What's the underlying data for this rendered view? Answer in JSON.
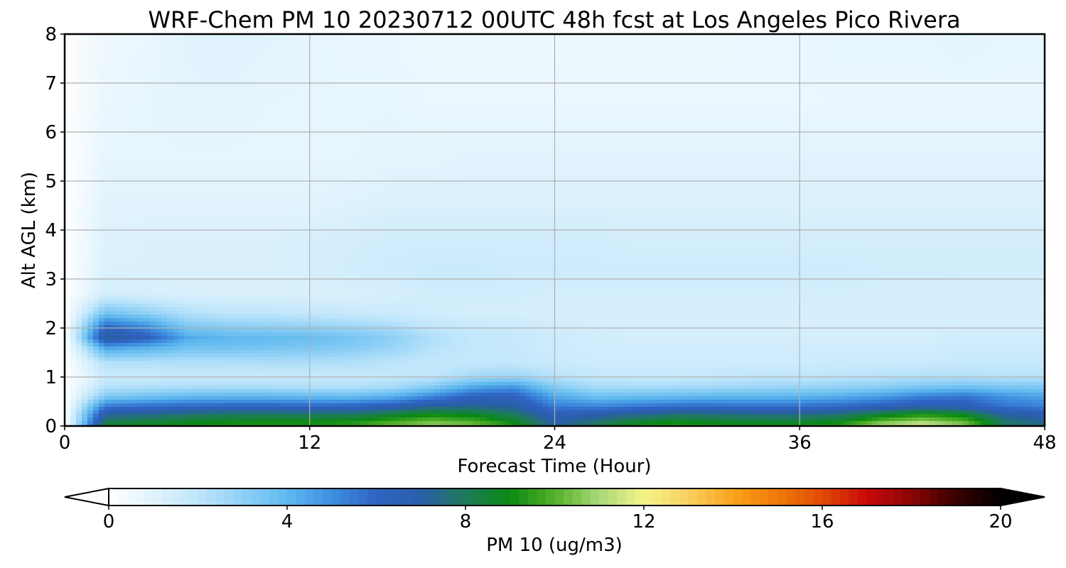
{
  "chart_data": {
    "type": "heatmap",
    "title": "WRF-Chem PM 10  20230712 00UTC 48h fcst at Los Angeles Pico Rivera",
    "xlabel": "Forecast Time (Hour)",
    "ylabel": "Alt AGL (km)",
    "xlim": [
      0,
      48
    ],
    "ylim": [
      0,
      8
    ],
    "xticks": [
      "0",
      "12",
      "24",
      "36",
      "48"
    ],
    "yticks": [
      "0",
      "1",
      "2",
      "3",
      "4",
      "5",
      "6",
      "7",
      "8"
    ],
    "grid": true,
    "colorbar": {
      "label": "PM 10  (ug/m3)",
      "range": [
        0,
        20
      ],
      "ticks": [
        "0",
        "4",
        "8",
        "12",
        "16",
        "20"
      ],
      "extend": "both",
      "colors": [
        "#ffffff",
        "#e1f3fd",
        "#c0e6fb",
        "#8fd0f6",
        "#5fb9ee",
        "#3e8fe0",
        "#2f63c3",
        "#2a5ea8",
        "#1e7a5a",
        "#0a8a12",
        "#55b02a",
        "#a8d878",
        "#f4f48a",
        "#f9d060",
        "#f8a21d",
        "#f07a08",
        "#e04a05",
        "#c80a0a",
        "#8a0505",
        "#3a0000",
        "#000000"
      ]
    },
    "x_hours": [
      0,
      2,
      4,
      6,
      8,
      10,
      12,
      14,
      16,
      18,
      20,
      22,
      24,
      26,
      28,
      30,
      32,
      34,
      36,
      38,
      40,
      42,
      44,
      46,
      48
    ],
    "z_km": [
      0,
      0.1,
      0.25,
      0.4,
      0.6,
      0.8,
      1.0,
      1.3,
      1.6,
      1.8,
      2.0,
      2.3,
      2.7,
      3.2,
      3.8,
      4.5,
      5.5,
      6.5,
      8.0
    ],
    "values": [
      [
        0.0,
        8.8,
        9.0,
        9.3,
        9.5,
        9.5,
        9.4,
        9.7,
        10.5,
        11.0,
        10.7,
        9.5,
        7.2,
        8.2,
        9.3,
        9.8,
        9.4,
        9.3,
        9.3,
        9.8,
        11.5,
        12.0,
        11.0,
        8.0,
        7.5
      ],
      [
        0.0,
        8.0,
        8.3,
        8.6,
        8.8,
        8.9,
        8.9,
        9.0,
        9.6,
        10.2,
        9.8,
        8.7,
        6.9,
        7.6,
        8.4,
        8.7,
        8.5,
        8.4,
        8.4,
        8.7,
        10.0,
        10.8,
        10.0,
        7.8,
        7.2
      ],
      [
        0.0,
        7.0,
        7.3,
        7.6,
        7.8,
        7.8,
        7.8,
        7.8,
        8.3,
        8.8,
        8.6,
        7.9,
        6.4,
        6.7,
        7.2,
        7.6,
        7.5,
        7.4,
        7.4,
        7.6,
        8.4,
        9.0,
        8.6,
        7.0,
        6.6
      ],
      [
        0.0,
        5.5,
        5.8,
        6.0,
        6.1,
        6.1,
        6.0,
        6.1,
        6.5,
        7.2,
        7.3,
        7.0,
        5.4,
        5.2,
        5.5,
        5.8,
        5.8,
        5.7,
        5.7,
        5.9,
        6.3,
        6.7,
        6.5,
        5.6,
        5.3
      ],
      [
        0.0,
        3.3,
        3.6,
        3.9,
        4.0,
        4.0,
        3.9,
        3.8,
        4.2,
        5.2,
        6.2,
        6.3,
        4.4,
        3.7,
        3.8,
        3.9,
        4.0,
        4.0,
        4.1,
        4.3,
        4.7,
        5.3,
        5.6,
        4.9,
        4.5
      ],
      [
        0.0,
        2.2,
        2.3,
        2.4,
        2.4,
        2.4,
        2.3,
        2.3,
        2.5,
        3.2,
        4.4,
        4.8,
        3.2,
        2.5,
        2.5,
        2.5,
        2.6,
        2.7,
        2.8,
        2.9,
        3.1,
        3.4,
        3.6,
        3.4,
        3.3
      ],
      [
        0.0,
        1.7,
        1.7,
        1.8,
        1.8,
        1.8,
        1.8,
        1.8,
        1.9,
        2.0,
        2.6,
        2.8,
        2.2,
        1.9,
        1.8,
        1.8,
        1.9,
        2.0,
        2.0,
        2.1,
        2.2,
        2.3,
        2.3,
        2.2,
        2.2
      ],
      [
        0.0,
        2.3,
        2.3,
        2.3,
        2.3,
        2.4,
        2.4,
        2.3,
        2.1,
        1.9,
        1.9,
        1.9,
        1.7,
        1.6,
        1.6,
        1.6,
        1.6,
        1.6,
        1.6,
        1.7,
        1.7,
        1.7,
        1.8,
        1.8,
        1.8
      ],
      [
        0.0,
        4.6,
        4.2,
        3.6,
        3.6,
        3.5,
        3.4,
        3.2,
        2.8,
        2.2,
        1.9,
        1.8,
        1.6,
        1.5,
        1.5,
        1.5,
        1.5,
        1.5,
        1.5,
        1.5,
        1.5,
        1.5,
        1.6,
        1.6,
        1.6
      ],
      [
        0.0,
        7.2,
        6.3,
        4.4,
        4.0,
        3.9,
        3.8,
        3.5,
        3.0,
        2.3,
        1.9,
        1.8,
        1.6,
        1.5,
        1.4,
        1.4,
        1.4,
        1.4,
        1.4,
        1.4,
        1.4,
        1.4,
        1.5,
        1.5,
        1.5
      ],
      [
        0.0,
        6.2,
        5.2,
        3.5,
        3.2,
        3.1,
        3.0,
        2.8,
        2.5,
        2.0,
        1.8,
        1.7,
        1.5,
        1.4,
        1.3,
        1.3,
        1.3,
        1.3,
        1.3,
        1.3,
        1.3,
        1.3,
        1.4,
        1.4,
        1.4
      ],
      [
        0.0,
        3.6,
        3.0,
        2.3,
        2.0,
        2.0,
        1.9,
        1.8,
        1.7,
        1.5,
        1.4,
        1.4,
        1.3,
        1.3,
        1.3,
        1.3,
        1.3,
        1.3,
        1.3,
        1.3,
        1.3,
        1.3,
        1.3,
        1.3,
        1.3
      ],
      [
        0.0,
        1.4,
        1.3,
        1.2,
        1.2,
        1.2,
        1.2,
        1.2,
        1.3,
        1.5,
        1.5,
        1.5,
        1.4,
        1.4,
        1.4,
        1.4,
        1.4,
        1.4,
        1.4,
        1.4,
        1.4,
        1.4,
        1.3,
        1.3,
        1.3
      ],
      [
        0.0,
        1.2,
        1.2,
        1.2,
        1.2,
        1.2,
        1.3,
        1.5,
        1.6,
        1.7,
        1.7,
        1.6,
        1.6,
        1.6,
        1.6,
        1.6,
        1.6,
        1.6,
        1.6,
        1.6,
        1.5,
        1.5,
        1.5,
        1.5,
        1.5
      ],
      [
        0.0,
        1.1,
        1.2,
        1.2,
        1.2,
        1.2,
        1.3,
        1.4,
        1.5,
        1.5,
        1.5,
        1.5,
        1.5,
        1.5,
        1.4,
        1.4,
        1.4,
        1.4,
        1.4,
        1.4,
        1.4,
        1.4,
        1.4,
        1.4,
        1.4
      ],
      [
        0.0,
        1.0,
        1.0,
        1.0,
        1.0,
        1.0,
        1.0,
        1.1,
        1.2,
        1.2,
        1.2,
        1.2,
        1.2,
        1.2,
        1.2,
        1.2,
        1.2,
        1.2,
        1.2,
        1.2,
        1.2,
        1.2,
        1.2,
        1.2,
        1.2
      ],
      [
        0.0,
        0.8,
        0.8,
        0.8,
        0.8,
        0.8,
        0.8,
        0.8,
        0.9,
        0.9,
        1.0,
        1.0,
        1.0,
        1.0,
        1.0,
        1.0,
        1.0,
        1.0,
        1.0,
        1.0,
        1.0,
        1.0,
        1.0,
        1.0,
        1.0
      ],
      [
        0.0,
        0.7,
        0.8,
        0.9,
        0.9,
        0.8,
        0.8,
        0.8,
        0.8,
        0.7,
        0.7,
        0.7,
        0.7,
        0.7,
        0.7,
        0.7,
        0.7,
        0.7,
        0.7,
        0.7,
        0.7,
        0.7,
        0.7,
        0.7,
        0.7
      ],
      [
        0.0,
        0.6,
        0.7,
        1.0,
        1.1,
        1.0,
        0.8,
        0.7,
        0.7,
        0.6,
        0.6,
        0.6,
        0.6,
        0.6,
        0.6,
        0.6,
        0.6,
        0.7,
        0.7,
        0.8,
        0.8,
        0.8,
        0.9,
        0.8,
        0.8
      ]
    ]
  }
}
